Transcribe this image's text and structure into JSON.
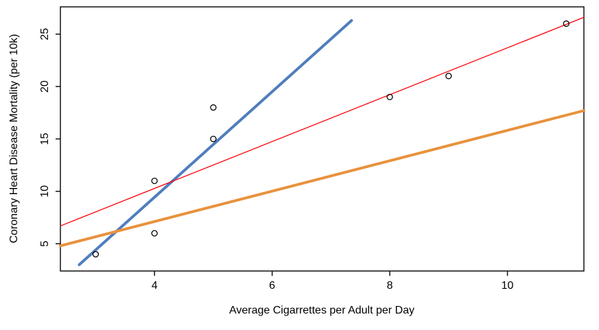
{
  "chart_data": {
    "type": "scatter",
    "title": "",
    "xlabel": "Average Cigarrettes per Adult per Day",
    "ylabel": "Coronary Heart Disease Mortality (per 10k)",
    "xlim": [
      2.4,
      11.3
    ],
    "ylim": [
      2.4,
      27.6
    ],
    "xticks": [
      4,
      6,
      8,
      10
    ],
    "yticks": [
      5,
      10,
      15,
      20,
      25
    ],
    "grid": false,
    "legend": "none",
    "points": [
      {
        "x": 3,
        "y": 4
      },
      {
        "x": 4,
        "y": 6
      },
      {
        "x": 4,
        "y": 11
      },
      {
        "x": 5,
        "y": 15
      },
      {
        "x": 5,
        "y": 18
      },
      {
        "x": 8,
        "y": 19
      },
      {
        "x": 9,
        "y": 21
      },
      {
        "x": 11,
        "y": 26
      }
    ],
    "point_style": {
      "shape": "open-circle",
      "radius": 4,
      "color": "#000000"
    },
    "lines": [
      {
        "name": "steep-fit-line",
        "color": "#4f7dbe",
        "width": 4,
        "points": [
          [
            2.72,
            3.0
          ],
          [
            7.35,
            26.3
          ]
        ]
      },
      {
        "name": "regression-line",
        "color": "#fb0007",
        "width": 1.3,
        "points": [
          [
            2.4,
            6.7
          ],
          [
            11.3,
            26.6
          ]
        ]
      },
      {
        "name": "shallow-fit-line",
        "color": "#e8923d",
        "width": 4,
        "points": [
          [
            2.4,
            4.8
          ],
          [
            11.3,
            17.7
          ]
        ]
      }
    ]
  },
  "colors": {
    "background": "#ffffff",
    "axis": "#000000",
    "text": "#000000"
  }
}
